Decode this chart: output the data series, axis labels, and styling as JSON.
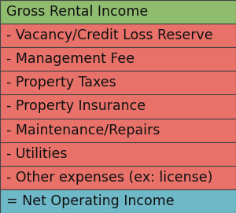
{
  "rows": [
    {
      "text": "Gross Rental Income",
      "color": "#8fbc6e"
    },
    {
      "text": "- Vacancy/Credit Loss Reserve",
      "color": "#e8726a"
    },
    {
      "text": "- Management Fee",
      "color": "#e8726a"
    },
    {
      "text": "- Property Taxes",
      "color": "#e8726a"
    },
    {
      "text": "- Property Insurance",
      "color": "#e8726a"
    },
    {
      "text": "- Maintenance/Repairs",
      "color": "#e8726a"
    },
    {
      "text": "- Utilities",
      "color": "#e8726a"
    },
    {
      "text": "- Other expenses (ex: license)",
      "color": "#e8726a"
    },
    {
      "text": "= Net Operating Income",
      "color": "#6fb8c8"
    }
  ],
  "border_color": "#444444",
  "text_color": "#111111",
  "font_size": 12.5,
  "fig_width": 3.0,
  "fig_height": 2.71
}
